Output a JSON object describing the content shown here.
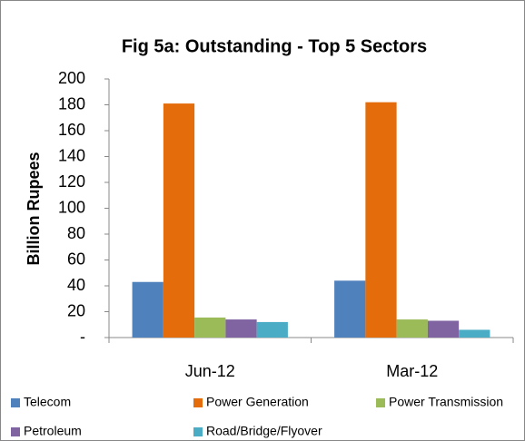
{
  "chart_data": {
    "type": "bar",
    "title": "Fig 5a: Outstanding - Top 5 Sectors",
    "y_label": "Billion Rupees",
    "categories": [
      "Jun-12",
      "Mar-12"
    ],
    "series": [
      {
        "name": "Telecom",
        "color": "#4f81bd",
        "values": [
          43,
          44
        ]
      },
      {
        "name": "Power Generation",
        "color": "#e46c0a",
        "values": [
          181,
          182
        ]
      },
      {
        "name": "Power Transmission",
        "color": "#9bbb59",
        "values": [
          15.5,
          14
        ]
      },
      {
        "name": "Petroleum",
        "color": "#8064a2",
        "values": [
          14,
          13
        ]
      },
      {
        "name": "Road/Bridge/Flyover",
        "color": "#4bacc6",
        "values": [
          12,
          6
        ]
      }
    ],
    "ylim": [
      0,
      200
    ],
    "yticks": [
      {
        "value": 0,
        "label": "-"
      },
      20,
      40,
      60,
      80,
      100,
      120,
      140,
      160,
      180,
      200
    ],
    "grid": false
  }
}
